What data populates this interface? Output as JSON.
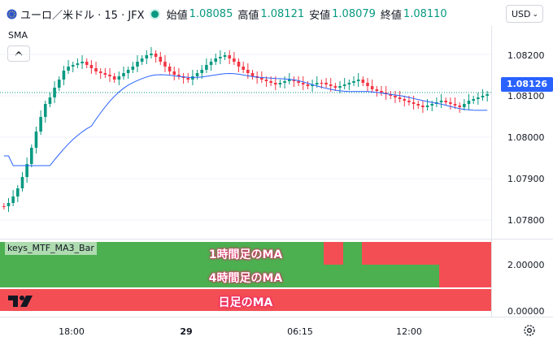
{
  "header": {
    "symbol": "ユーロ／米ドル · 15 · JFX",
    "open_label": "始値",
    "open_value": "1.08085",
    "high_label": "高値",
    "high_value": "1.08121",
    "low_label": "安値",
    "low_value": "1.08079",
    "close_label": "終値",
    "close_value": "1.08110",
    "currency": "USD"
  },
  "indicator_main": {
    "label": "SMA",
    "collapse_icon": "chevron-up-icon"
  },
  "price_axis": {
    "ticks": [
      "1.08200",
      "1.08100",
      "1.08000",
      "1.07900",
      "1.07800"
    ],
    "last_price": "1.08126",
    "last_price_color": "#2962ff"
  },
  "indicator_pane": {
    "title": "keys_MTF_MA3_Bar",
    "rows": [
      "1時間足のMA",
      "4時間足のMA",
      "日足のMA"
    ],
    "ticks": [
      "2.00000",
      "0.00000"
    ],
    "up_color": "#4caf50",
    "down_color": "#f44e55"
  },
  "time_axis": {
    "ticks": [
      "18:00",
      "29",
      "06:15",
      "12:00"
    ]
  },
  "colors": {
    "up": "#089981",
    "down": "#f23645",
    "sma": "#2962ff"
  }
}
